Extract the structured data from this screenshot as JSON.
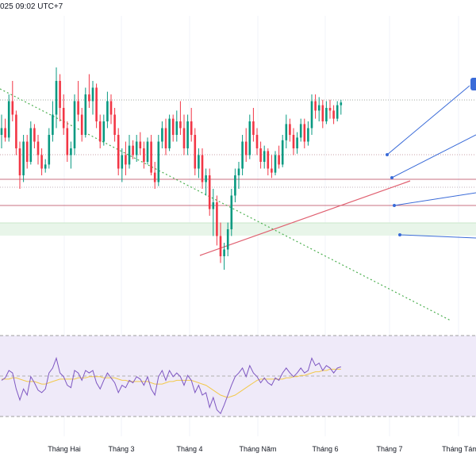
{
  "header": {
    "datetime_text": "025 09:02 UTC+7"
  },
  "colors": {
    "up": "#089981",
    "down": "#f23645",
    "trendline_down": "#4caf50",
    "trendline_up": "#e06070",
    "resistance_line": "#d07080",
    "level_line": "#b0b0b0",
    "projection_line": "#3a6bd8",
    "rsi_line": "#7e57c2",
    "rsi_ma_line": "#f2c94c",
    "rsi_band": "#efeaf9",
    "support_zone": "#e8f5e9"
  },
  "chart_data": [
    {
      "type": "candlestick",
      "title": "",
      "x_tick_labels": [
        "Tháng Hai",
        "Tháng 3",
        "Tháng 4",
        "Tháng Năm",
        "Tháng 6",
        "Tháng 7",
        "Tháng Tám"
      ],
      "grid": true,
      "annotations": [
        "descending trendline (dotted green)",
        "ascending trendline (red)",
        "horizontal resistance levels",
        "support zone (green shaded)",
        "projection arrows (blue)"
      ],
      "series": [
        {
          "values": [
            [
              200,
              215,
              190,
              205
            ],
            [
              205,
              212,
              195,
              198
            ],
            [
              198,
              230,
              195,
              225
            ],
            [
              225,
              240,
              210,
              215
            ],
            [
              215,
              218,
              185,
              190
            ],
            [
              190,
              195,
              160,
              170
            ],
            [
              170,
              200,
              165,
              195
            ],
            [
              195,
              200,
              175,
              180
            ],
            [
              180,
              210,
              178,
              205
            ],
            [
              205,
              208,
              190,
              195
            ],
            [
              195,
              200,
              178,
              185
            ],
            [
              185,
              190,
              170,
              175
            ],
            [
              175,
              182,
              172,
              178
            ],
            [
              178,
              205,
              175,
              200
            ],
            [
              200,
              225,
              195,
              215
            ],
            [
              215,
              250,
              205,
              240
            ],
            [
              240,
              245,
              210,
              220
            ],
            [
              220,
              230,
              200,
              205
            ],
            [
              205,
              210,
              180,
              185
            ],
            [
              185,
              195,
              175,
              190
            ],
            [
              190,
              230,
              185,
              225
            ],
            [
              225,
              240,
              210,
              215
            ],
            [
              215,
              220,
              195,
              200
            ],
            [
              200,
              235,
              198,
              230
            ],
            [
              230,
              245,
              220,
              225
            ],
            [
              225,
              240,
              215,
              235
            ],
            [
              235,
              238,
              205,
              210
            ],
            [
              210,
              215,
              190,
              195
            ],
            [
              195,
              215,
              192,
              210
            ],
            [
              210,
              232,
              205,
              225
            ],
            [
              225,
              230,
              208,
              215
            ],
            [
              215,
              220,
              195,
              200
            ],
            [
              200,
              205,
              170,
              175
            ],
            [
              175,
              190,
              165,
              185
            ],
            [
              185,
              195,
              170,
              178
            ],
            [
              178,
              200,
              175,
              192
            ],
            [
              192,
              196,
              182,
              185
            ],
            [
              185,
              200,
              180,
              195
            ],
            [
              195,
              202,
              185,
              190
            ],
            [
              190,
              195,
              175,
              180
            ],
            [
              180,
              198,
              178,
              195
            ],
            [
              195,
              200,
              170,
              172
            ],
            [
              172,
              180,
              160,
              165
            ],
            [
              165,
              200,
              162,
              195
            ],
            [
              195,
              210,
              190,
              205
            ],
            [
              205,
              212,
              185,
              190
            ],
            [
              190,
              215,
              188,
              212
            ],
            [
              212,
              215,
              195,
              200
            ],
            [
              200,
              218,
              195,
              210
            ],
            [
              210,
              225,
              200,
              205
            ],
            [
              205,
              215,
              185,
              190
            ],
            [
              190,
              215,
              185,
              210
            ],
            [
              210,
              220,
              195,
              200
            ],
            [
              200,
              205,
              170,
              175
            ],
            [
              175,
              190,
              168,
              185
            ],
            [
              185,
              190,
              160,
              165
            ],
            [
              165,
              175,
              155,
              170
            ],
            [
              170,
              175,
              140,
              145
            ],
            [
              145,
              160,
              125,
              150
            ],
            [
              150,
              155,
              118,
              125
            ],
            [
              125,
              135,
              105,
              110
            ],
            [
              110,
              120,
              100,
              115
            ],
            [
              115,
              135,
              110,
              130
            ],
            [
              130,
              160,
              125,
              155
            ],
            [
              155,
              175,
              150,
              170
            ],
            [
              170,
              180,
              160,
              175
            ],
            [
              175,
              200,
              170,
              195
            ],
            [
              195,
              205,
              180,
              185
            ],
            [
              185,
              215,
              182,
              210
            ],
            [
              210,
              220,
              195,
              200
            ],
            [
              200,
              205,
              185,
              190
            ],
            [
              190,
              195,
              175,
              180
            ],
            [
              180,
              192,
              175,
              188
            ],
            [
              188,
              190,
              170,
              175
            ],
            [
              175,
              185,
              168,
              172
            ],
            [
              172,
              188,
              170,
              185
            ],
            [
              185,
              192,
              175,
              178
            ],
            [
              178,
              200,
              176,
              196
            ],
            [
              196,
              215,
              190,
              208
            ],
            [
              208,
              212,
              195,
              200
            ],
            [
              200,
              205,
              185,
              190
            ],
            [
              190,
              202,
              186,
              198
            ],
            [
              198,
              212,
              195,
              208
            ],
            [
              208,
              212,
              190,
              195
            ],
            [
              195,
              210,
              192,
              205
            ],
            [
              205,
              230,
              200,
              225
            ],
            [
              225,
              230,
              212,
              218
            ],
            [
              218,
              228,
              210,
              222
            ],
            [
              222,
              226,
              205,
              210
            ],
            [
              210,
              225,
              208,
              220
            ],
            [
              220,
              226,
              212,
              218
            ],
            [
              218,
              222,
              208,
              212
            ],
            [
              212,
              225,
              210,
              222
            ],
            [
              222,
              226,
              215,
              224
            ]
          ]
        }
      ],
      "series_interval": "daily"
    },
    {
      "type": "line",
      "title": "",
      "ylim": [
        0,
        100
      ],
      "band": [
        30,
        70
      ],
      "series": [
        {
          "values": [
            52,
            54,
            60,
            58,
            45,
            36,
            45,
            40,
            55,
            50,
            44,
            42,
            45,
            58,
            62,
            70,
            58,
            55,
            48,
            46,
            60,
            58,
            52,
            60,
            58,
            60,
            50,
            45,
            52,
            58,
            54,
            50,
            42,
            48,
            46,
            52,
            50,
            55,
            53,
            48,
            55,
            45,
            40,
            55,
            60,
            52,
            60,
            55,
            58,
            55,
            48,
            56,
            52,
            42,
            48,
            40,
            42,
            30,
            38,
            28,
            25,
            32,
            40,
            48,
            55,
            58,
            62,
            55,
            64,
            58,
            55,
            50,
            54,
            50,
            48,
            54,
            52,
            58,
            62,
            58,
            55,
            58,
            62,
            58,
            60,
            70,
            64,
            66,
            60,
            64,
            62,
            58,
            62,
            63
          ]
        },
        {
          "values": [
            53,
            53,
            53,
            54,
            54,
            53,
            52,
            51,
            51,
            51,
            50,
            49,
            49,
            50,
            51,
            52,
            53,
            53,
            53,
            53,
            53,
            54,
            54,
            54,
            55,
            55,
            55,
            55,
            54,
            54,
            54,
            54,
            53,
            52,
            52,
            51,
            51,
            51,
            51,
            51,
            51,
            50,
            49,
            49,
            49,
            50,
            51,
            51,
            52,
            52,
            52,
            52,
            52,
            51,
            50,
            49,
            48,
            46,
            44,
            42,
            40,
            39,
            38,
            39,
            40,
            42,
            44,
            46,
            48,
            50,
            52,
            53,
            53,
            53,
            53,
            53,
            53,
            53,
            54,
            54,
            55,
            55,
            56,
            56,
            57,
            58,
            59,
            59,
            60,
            60,
            61,
            61,
            61,
            61
          ]
        }
      ]
    }
  ]
}
